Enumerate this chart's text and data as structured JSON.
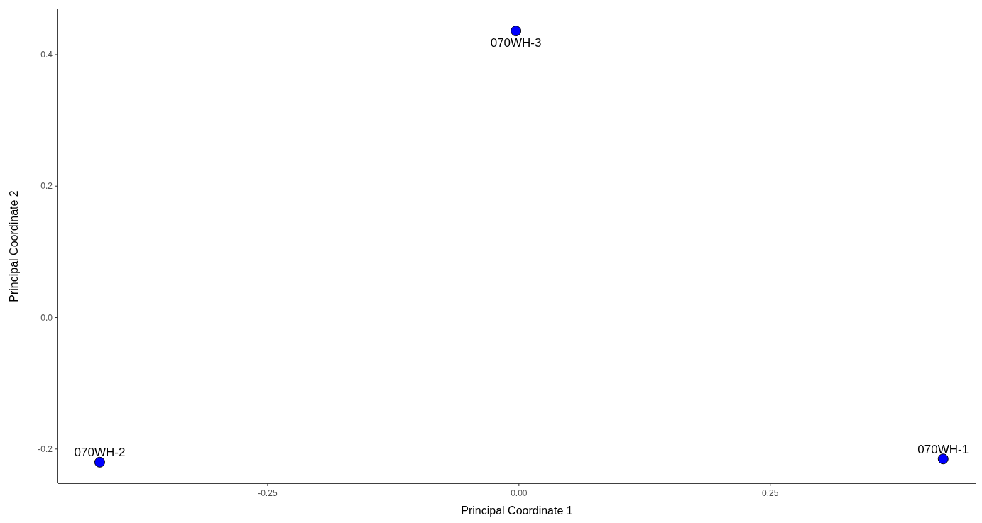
{
  "chart_data": {
    "type": "scatter",
    "xlabel": "Principal Coordinate 1",
    "ylabel": "Principal Coordinate 2",
    "x": [
      0.422,
      -0.417,
      -0.003
    ],
    "values": [
      -0.215,
      -0.22,
      0.436
    ],
    "color": "#0000ff",
    "marker": "circle",
    "grid": false,
    "xlim": [
      -0.459,
      0.455
    ],
    "ylim": [
      -0.252,
      0.469
    ],
    "xticks": [
      {
        "value": -0.25,
        "label": "-0.25"
      },
      {
        "value": 0,
        "label": "0.00"
      },
      {
        "value": 0.25,
        "label": "0.25"
      }
    ],
    "yticks": [
      {
        "value": -0.2,
        "label": "-0.2"
      },
      {
        "value": 0,
        "label": "0.0"
      },
      {
        "value": 0.2,
        "label": "0.2"
      },
      {
        "value": 0.4,
        "label": "0.4"
      }
    ],
    "annotations": [
      {
        "text": "070WH-1",
        "x": 0.422,
        "y": -0.215
      },
      {
        "text": "070WH-2",
        "x": -0.417,
        "y": -0.22
      },
      {
        "text": "070WH-3",
        "x": -0.003,
        "y": 0.436
      }
    ]
  }
}
